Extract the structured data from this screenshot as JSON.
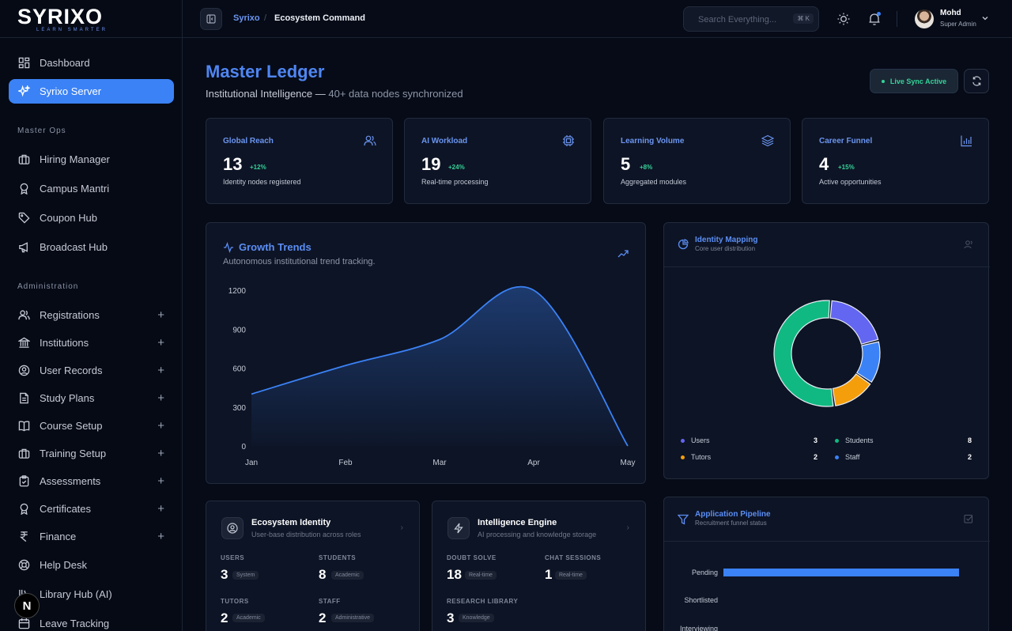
{
  "brand": {
    "name": "SYRIXO",
    "tagline": "LEARN SMARTER"
  },
  "sidebar": {
    "top_items": [
      {
        "label": "Dashboard",
        "icon": "dashboard-icon"
      },
      {
        "label": "Syrixo Server",
        "icon": "sparkle-icon",
        "active": true
      }
    ],
    "master_ops_label": "Master Ops",
    "master_ops": [
      {
        "label": "Hiring Manager",
        "icon": "briefcase-icon"
      },
      {
        "label": "Campus Mantri",
        "icon": "award-icon"
      },
      {
        "label": "Coupon Hub",
        "icon": "tag-icon"
      },
      {
        "label": "Broadcast Hub",
        "icon": "megaphone-icon"
      }
    ],
    "admin_label": "Administration",
    "admin": [
      {
        "label": "Registrations",
        "icon": "users-icon"
      },
      {
        "label": "Institutions",
        "icon": "bank-icon"
      },
      {
        "label": "User Records",
        "icon": "user-circle-icon"
      },
      {
        "label": "Study Plans",
        "icon": "file-icon"
      },
      {
        "label": "Course Setup",
        "icon": "book-icon"
      },
      {
        "label": "Training Setup",
        "icon": "briefcase-icon"
      },
      {
        "label": "Assessments",
        "icon": "clipboard-icon"
      },
      {
        "label": "Certificates",
        "icon": "award-icon"
      },
      {
        "label": "Finance",
        "icon": "rupee-icon"
      },
      {
        "label": "Help Desk",
        "icon": "lifebuoy-icon"
      },
      {
        "label": "Library Hub (AI)",
        "icon": "library-icon"
      },
      {
        "label": "Leave Tracking",
        "icon": "calendar-icon"
      }
    ],
    "plus": "+",
    "badge": "N"
  },
  "header": {
    "crumb_root": "Syrixo",
    "crumb_sep": "/",
    "crumb_current": "Ecosystem Command",
    "search_placeholder": "Search Everything...",
    "search_shortcut": "⌘ K",
    "user_name": "Mohd",
    "user_role": "Super Admin"
  },
  "page": {
    "title": "Master Ledger",
    "subtitle_main": "Institutional Intelligence — ",
    "subtitle_rest": "40+ data nodes synchronized",
    "live_label": "Live Sync Active"
  },
  "stats": [
    {
      "title": "Global Reach",
      "value": "13",
      "delta": "+12%",
      "desc": "Identity nodes registered",
      "icon": "users-icon"
    },
    {
      "title": "AI Workload",
      "value": "19",
      "delta": "+24%",
      "desc": "Real-time processing",
      "icon": "cpu-icon"
    },
    {
      "title": "Learning Volume",
      "value": "5",
      "delta": "+8%",
      "desc": "Aggregated modules",
      "icon": "layers-icon"
    },
    {
      "title": "Career Funnel",
      "value": "4",
      "delta": "+15%",
      "desc": "Active opportunities",
      "icon": "bar-chart-icon"
    }
  ],
  "growth": {
    "title": "Growth Trends",
    "subtitle": "Autonomous institutional trend tracking."
  },
  "identity": {
    "title": "Identity Mapping",
    "subtitle": "Core user distribution",
    "legend": [
      {
        "label": "Users",
        "value": "3",
        "color": "#6366f1"
      },
      {
        "label": "Students",
        "value": "8",
        "color": "#10b981"
      },
      {
        "label": "Tutors",
        "value": "2",
        "color": "#f59e0b"
      },
      {
        "label": "Staff",
        "value": "2",
        "color": "#3b82f6"
      }
    ]
  },
  "eco": {
    "title": "Ecosystem Identity",
    "subtitle": "User-base distribution across roles",
    "metrics": [
      {
        "label": "USERS",
        "value": "3",
        "tag": "System"
      },
      {
        "label": "STUDENTS",
        "value": "8",
        "tag": "Academic"
      },
      {
        "label": "TUTORS",
        "value": "2",
        "tag": "Academic"
      },
      {
        "label": "STAFF",
        "value": "2",
        "tag": "Administrative"
      }
    ]
  },
  "engine": {
    "title": "Intelligence Engine",
    "subtitle": "AI processing and knowledge storage",
    "metrics": [
      {
        "label": "DOUBT SOLVE",
        "value": "18",
        "tag": "Real-time"
      },
      {
        "label": "CHAT SESSIONS",
        "value": "1",
        "tag": "Real-time"
      },
      {
        "label": "RESEARCH LIBRARY",
        "value": "3",
        "tag": "Knowledge"
      }
    ]
  },
  "pipeline": {
    "title": "Application Pipeline",
    "subtitle": "Recruitment funnel status",
    "stages": [
      {
        "label": "Pending",
        "fraction": 1.0
      },
      {
        "label": "Shortlisted",
        "fraction": 0
      },
      {
        "label": "Interviewing",
        "fraction": 0
      }
    ]
  },
  "chart_data": [
    {
      "type": "area",
      "categories": [
        "Jan",
        "Feb",
        "Mar",
        "Apr",
        "May"
      ],
      "series": [
        {
          "values": [
            400,
            620,
            820,
            1200,
            0
          ]
        }
      ],
      "ylim": [
        0,
        1200
      ],
      "yticks": [
        0,
        300,
        600,
        900,
        1200
      ],
      "grid": false,
      "color": "#3b82f6"
    },
    {
      "type": "pie",
      "categories": [
        "Users",
        "Students",
        "Tutors",
        "Staff"
      ],
      "values": [
        3,
        8,
        2,
        2
      ],
      "colors": [
        "#6366f1",
        "#10b981",
        "#f59e0b",
        "#3b82f6"
      ]
    }
  ]
}
